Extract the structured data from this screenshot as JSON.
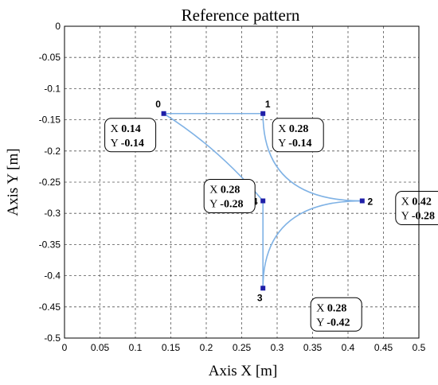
{
  "chart_data": {
    "type": "line",
    "title": "Reference pattern",
    "xlabel": "Axis X [m]",
    "ylabel": "Axis Y [m]",
    "xlim": [
      0,
      0.5
    ],
    "ylim": [
      -0.5,
      0
    ],
    "grid": true,
    "x_ticks": [
      "0",
      "0.05",
      "0.1",
      "0.15",
      "0.2",
      "0.25",
      "0.3",
      "0.35",
      "0.4",
      "0.45",
      "0.5"
    ],
    "y_ticks": [
      "0",
      "-0.05",
      "-0.1",
      "-0.15",
      "-0.2",
      "-0.25",
      "-0.3",
      "-0.35",
      "-0.4",
      "-0.45",
      "-0.5"
    ],
    "points": [
      {
        "label": "0",
        "x": 0.14,
        "y": -0.14,
        "x_text": "0.14",
        "y_text": "-0.14"
      },
      {
        "label": "1",
        "x": 0.28,
        "y": -0.14,
        "x_text": "0.28",
        "y_text": "-0.14"
      },
      {
        "label": "2",
        "x": 0.42,
        "y": -0.28,
        "x_text": "0.42",
        "y_text": "-0.28"
      },
      {
        "label": "3",
        "x": 0.28,
        "y": -0.42,
        "x_text": "0.28",
        "y_text": "-0.42"
      },
      {
        "label": "4",
        "x": 0.28,
        "y": -0.28,
        "x_text": "0.28",
        "y_text": "-0.28"
      }
    ],
    "datatip_x_prefix": "X",
    "datatip_y_prefix": "Y",
    "line_color": "#7fb2e5",
    "marker_color": "#1f1fa8"
  }
}
